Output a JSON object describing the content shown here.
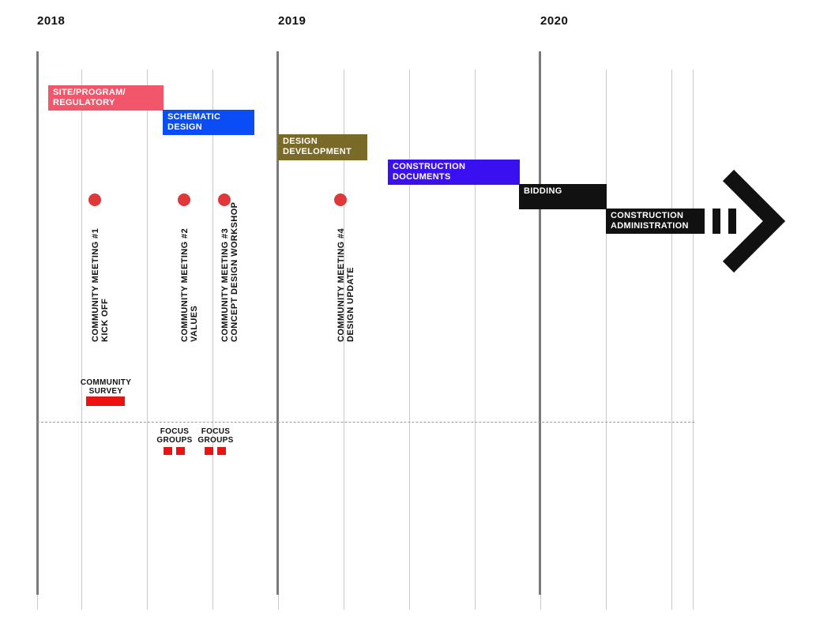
{
  "years": [
    "2018",
    "2019",
    "2020"
  ],
  "phases": [
    {
      "line1": "SITE/PROGRAM/",
      "line2": "REGULATORY",
      "color": "#f2566a"
    },
    {
      "line1": "SCHEMATIC",
      "line2": "DESIGN",
      "color": "#0a4cf5"
    },
    {
      "line1": "DESIGN",
      "line2": "DEVELOPMENT",
      "color": "#7a6a28"
    },
    {
      "line1": "CONSTRUCTION",
      "line2": "DOCUMENTS",
      "color": "#3a10f0"
    },
    {
      "line1": "BIDDING",
      "line2": "",
      "color": "#111111"
    },
    {
      "line1": "CONSTRUCTION",
      "line2": "ADMINISTRATION",
      "color": "#111111"
    }
  ],
  "meetings": [
    {
      "title": "COMMUNITY MEETING #1",
      "subtitle": "KICK OFF"
    },
    {
      "title": "COMMUNITY MEETING #2",
      "subtitle": "VALUES"
    },
    {
      "title": "COMMUNITY MEETING #3",
      "subtitle": "CONCEPT DESIGN WORKSHOP"
    },
    {
      "title": "COMMUNITY MEETING #4",
      "subtitle": "DESIGN UPDATE"
    }
  ],
  "survey": {
    "line1": "COMMUNITY",
    "line2": "SURVEY"
  },
  "focus_groups": [
    {
      "line1": "FOCUS",
      "line2": "GROUPS"
    },
    {
      "line1": "FOCUS",
      "line2": "GROUPS"
    }
  ],
  "colors": {
    "meeting_dot": "#e0383a",
    "outreach_bar": "#ee1111",
    "arrow": "#111111"
  }
}
